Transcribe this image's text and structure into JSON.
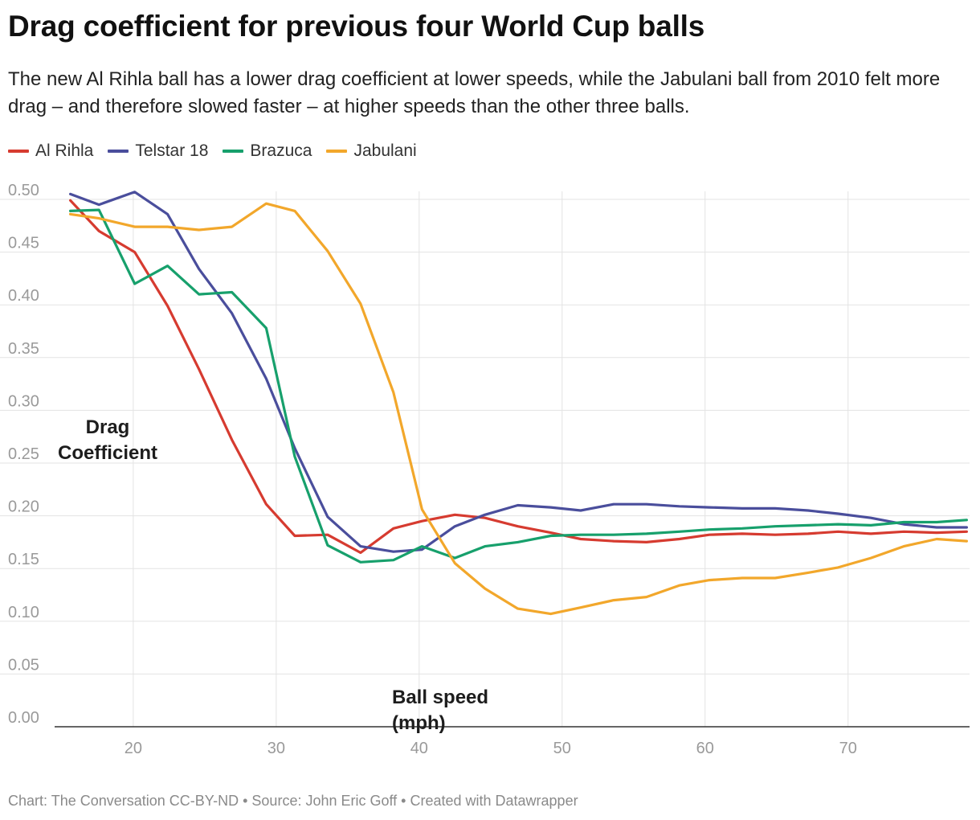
{
  "header": {
    "title": "Drag coefficient for previous four World Cup balls",
    "subtitle": "The new Al Rihla ball has a lower drag coefficient at lower speeds, while the Jabulani ball from 2010 felt more drag – and therefore slowed faster – at higher speeds than the other three balls."
  },
  "footer": {
    "text": "Chart: The Conversation CC-BY-ND • Source: John Eric Goff • Created with Datawrapper"
  },
  "chart_data": {
    "type": "line",
    "title": "Drag coefficient for previous four World Cup balls",
    "xlabel": "Ball speed (mph)",
    "ylabel": "Drag Coefficient",
    "xlim": [
      14.5,
      78.5
    ],
    "ylim": [
      0,
      0.5
    ],
    "x_ticks": [
      20,
      30,
      40,
      50,
      60,
      70
    ],
    "y_ticks": [
      "0.00",
      "0.05",
      "0.10",
      "0.15",
      "0.20",
      "0.25",
      "0.30",
      "0.35",
      "0.40",
      "0.45",
      "0.50"
    ],
    "grid": true,
    "legend_position": "top-left",
    "series": [
      {
        "name": "Al Rihla",
        "color": "#d63b30",
        "points": [
          [
            15.6,
            0.499
          ],
          [
            17.6,
            0.47
          ],
          [
            20.1,
            0.45
          ],
          [
            22.4,
            0.399
          ],
          [
            24.6,
            0.339
          ],
          [
            26.9,
            0.272
          ],
          [
            29.3,
            0.211
          ],
          [
            31.3,
            0.181
          ],
          [
            33.6,
            0.182
          ],
          [
            35.9,
            0.165
          ],
          [
            38.2,
            0.188
          ],
          [
            40.2,
            0.195
          ],
          [
            42.5,
            0.201
          ],
          [
            44.6,
            0.198
          ],
          [
            46.9,
            0.19
          ],
          [
            49.2,
            0.184
          ],
          [
            51.3,
            0.178
          ],
          [
            53.6,
            0.176
          ],
          [
            55.9,
            0.175
          ],
          [
            58.2,
            0.178
          ],
          [
            60.3,
            0.182
          ],
          [
            62.6,
            0.183
          ],
          [
            64.9,
            0.182
          ],
          [
            67.2,
            0.183
          ],
          [
            69.3,
            0.185
          ],
          [
            71.6,
            0.183
          ],
          [
            73.9,
            0.185
          ],
          [
            76.2,
            0.184
          ],
          [
            78.3,
            0.185
          ]
        ]
      },
      {
        "name": "Telstar 18",
        "color": "#4a4e9c",
        "points": [
          [
            15.6,
            0.505
          ],
          [
            17.6,
            0.495
          ],
          [
            20.1,
            0.507
          ],
          [
            22.4,
            0.486
          ],
          [
            24.6,
            0.434
          ],
          [
            26.9,
            0.392
          ],
          [
            29.3,
            0.33
          ],
          [
            31.3,
            0.264
          ],
          [
            33.6,
            0.199
          ],
          [
            35.9,
            0.171
          ],
          [
            38.2,
            0.166
          ],
          [
            40.2,
            0.168
          ],
          [
            42.5,
            0.19
          ],
          [
            44.6,
            0.201
          ],
          [
            46.9,
            0.21
          ],
          [
            49.2,
            0.208
          ],
          [
            51.3,
            0.205
          ],
          [
            53.6,
            0.211
          ],
          [
            55.9,
            0.211
          ],
          [
            58.2,
            0.209
          ],
          [
            60.3,
            0.208
          ],
          [
            62.6,
            0.207
          ],
          [
            64.9,
            0.207
          ],
          [
            67.2,
            0.205
          ],
          [
            69.3,
            0.202
          ],
          [
            71.6,
            0.198
          ],
          [
            73.9,
            0.192
          ],
          [
            76.2,
            0.189
          ],
          [
            78.3,
            0.189
          ]
        ]
      },
      {
        "name": "Brazuca",
        "color": "#17a06c",
        "points": [
          [
            15.6,
            0.489
          ],
          [
            17.6,
            0.49
          ],
          [
            20.1,
            0.42
          ],
          [
            22.4,
            0.437
          ],
          [
            24.6,
            0.41
          ],
          [
            26.9,
            0.412
          ],
          [
            29.3,
            0.378
          ],
          [
            31.3,
            0.256
          ],
          [
            33.6,
            0.172
          ],
          [
            35.9,
            0.156
          ],
          [
            38.2,
            0.158
          ],
          [
            40.2,
            0.171
          ],
          [
            42.5,
            0.16
          ],
          [
            44.6,
            0.171
          ],
          [
            46.9,
            0.175
          ],
          [
            49.2,
            0.181
          ],
          [
            51.3,
            0.182
          ],
          [
            53.6,
            0.182
          ],
          [
            55.9,
            0.183
          ],
          [
            58.2,
            0.185
          ],
          [
            60.3,
            0.187
          ],
          [
            62.6,
            0.188
          ],
          [
            64.9,
            0.19
          ],
          [
            67.2,
            0.191
          ],
          [
            69.3,
            0.192
          ],
          [
            71.6,
            0.191
          ],
          [
            73.9,
            0.194
          ],
          [
            76.2,
            0.194
          ],
          [
            78.3,
            0.196
          ]
        ]
      },
      {
        "name": "Jabulani",
        "color": "#f2a72b",
        "points": [
          [
            15.6,
            0.486
          ],
          [
            17.6,
            0.482
          ],
          [
            20.1,
            0.474
          ],
          [
            22.4,
            0.474
          ],
          [
            24.6,
            0.471
          ],
          [
            26.9,
            0.474
          ],
          [
            29.3,
            0.496
          ],
          [
            31.3,
            0.489
          ],
          [
            33.6,
            0.451
          ],
          [
            35.9,
            0.401
          ],
          [
            38.2,
            0.317
          ],
          [
            40.2,
            0.206
          ],
          [
            42.5,
            0.155
          ],
          [
            44.6,
            0.131
          ],
          [
            46.9,
            0.112
          ],
          [
            49.2,
            0.107
          ],
          [
            51.3,
            0.113
          ],
          [
            53.6,
            0.12
          ],
          [
            55.9,
            0.123
          ],
          [
            58.2,
            0.134
          ],
          [
            60.3,
            0.139
          ],
          [
            62.6,
            0.141
          ],
          [
            64.9,
            0.141
          ],
          [
            67.2,
            0.146
          ],
          [
            69.3,
            0.151
          ],
          [
            71.6,
            0.16
          ],
          [
            73.9,
            0.171
          ],
          [
            76.2,
            0.178
          ],
          [
            78.3,
            0.176
          ]
        ]
      }
    ]
  }
}
